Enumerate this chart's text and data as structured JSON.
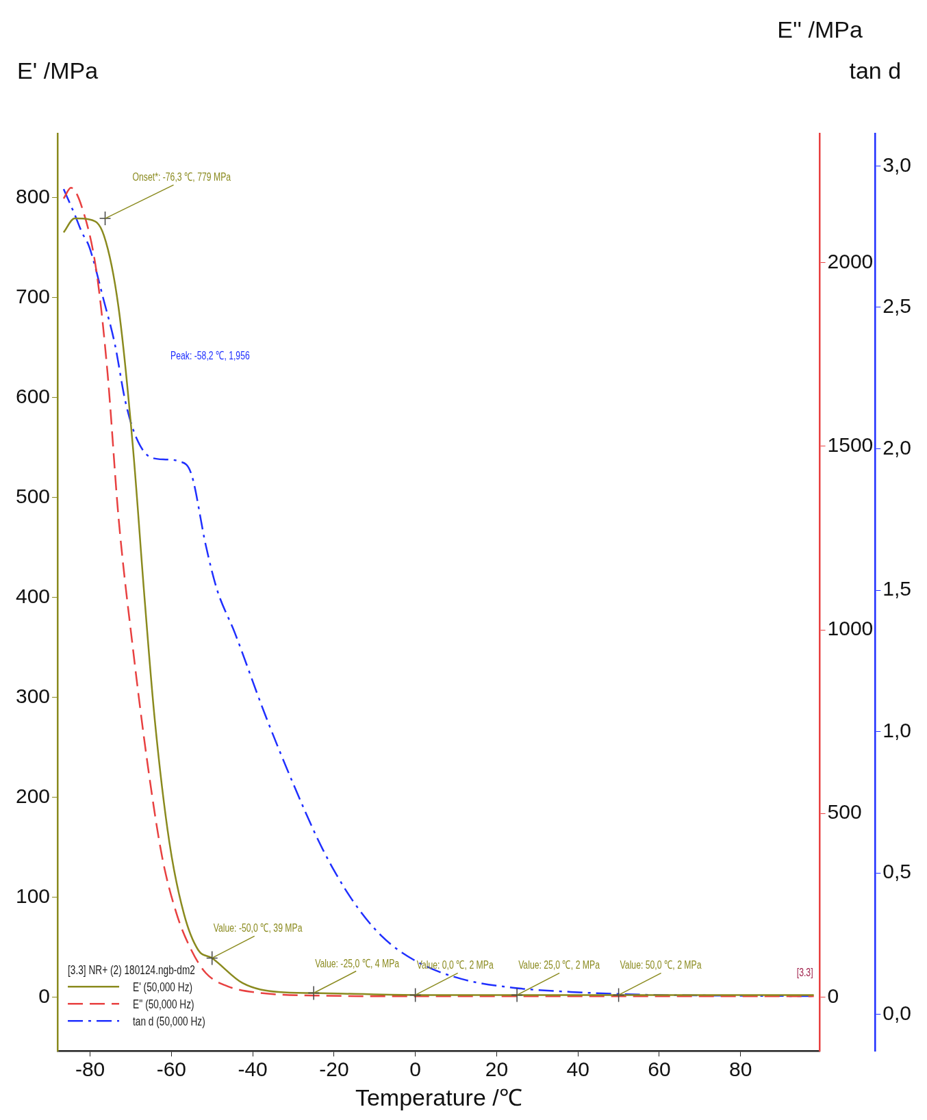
{
  "chart_data": {
    "type": "line",
    "xlabel": "Temperature /℃",
    "ylabel": "E' /MPa",
    "y2label": "E'' /MPa",
    "y3label": "tan d",
    "legend_title": "[3.3] NR+ (2) 180124.ngb-dm2",
    "legend": "bottom left",
    "xlim": [
      -88,
      99.5
    ],
    "xticks": [
      -80,
      -60,
      -40,
      -20,
      0,
      20,
      40,
      60,
      80
    ],
    "ylim": [
      -54,
      864
    ],
    "yticks": [
      0,
      100,
      200,
      300,
      400,
      500,
      600,
      700,
      800
    ],
    "y2lim": [
      -147,
      2352
    ],
    "y2ticks": [
      0,
      500,
      1000,
      1500,
      2000
    ],
    "y3lim": [
      -0.13,
      3.115
    ],
    "y3ticks": [
      {
        "value": 0,
        "label": "0,0"
      },
      {
        "value": 0.5,
        "label": "0,5"
      },
      {
        "value": 1,
        "label": "1,0"
      },
      {
        "value": 1.5,
        "label": "1,5"
      },
      {
        "value": 2,
        "label": "2,0"
      },
      {
        "value": 2.5,
        "label": "2,5"
      },
      {
        "value": 3,
        "label": "3,0"
      }
    ],
    "grid": false,
    "marker": "none",
    "series": [
      {
        "name": "E' (50,000 Hz)",
        "color": "#8a8a1e",
        "line_style": "solid",
        "x": [
          -86.5,
          -83.8,
          -80.2,
          -76.6,
          -73,
          -69.5,
          -66.6,
          -64.1,
          -60.5,
          -56.9,
          -53.4,
          -50,
          -42.5,
          -33.6,
          -25,
          0,
          25,
          50,
          98
        ],
        "values": [
          765,
          779,
          778,
          762,
          690,
          552,
          399,
          278,
          155,
          83,
          47,
          39,
          14,
          5,
          4,
          2,
          2,
          2,
          2
        ]
      },
      {
        "name": "E'' (50,000 Hz)",
        "color": "#e84040",
        "line_style": "dashed",
        "axis": "y2",
        "x": [
          -86.5,
          -84.7,
          -82,
          -78.4,
          -75.7,
          -73,
          -69.5,
          -65.9,
          -62.3,
          -58.7,
          -55.1,
          -51.5,
          -46.1,
          -37.1,
          -24.6,
          0,
          50,
          98
        ],
        "values": [
          2175,
          2204,
          2151,
          1974,
          1699,
          1306,
          953,
          638,
          383,
          226,
          128,
          65,
          29,
          10,
          4,
          2,
          2,
          2
        ]
      },
      {
        "name": "tan d (50,000 Hz)",
        "color": "#1f2fff",
        "line_style": "dashdot",
        "axis": "y3",
        "x": [
          -86.5,
          -83.8,
          -82,
          -80.2,
          -76.6,
          -73.9,
          -71.3,
          -68.6,
          -65,
          -61.4,
          -58.2,
          -55.1,
          -51.5,
          -48.8,
          -44.4,
          -37.2,
          -30,
          -22.8,
          -15.6,
          -8.4,
          0,
          11.3,
          23.9,
          38.2,
          56.2,
          74.2,
          97.5
        ],
        "values": [
          2.918,
          2.829,
          2.765,
          2.714,
          2.523,
          2.37,
          2.166,
          2.038,
          1.969,
          1.962,
          1.956,
          1.911,
          1.656,
          1.503,
          1.349,
          1.069,
          0.814,
          0.584,
          0.406,
          0.278,
          0.189,
          0.125,
          0.094,
          0.079,
          0.069,
          0.066,
          0.064
        ]
      }
    ],
    "annotations": [
      {
        "text": "Onset*: -76,3 ℃, 779 MPa",
        "x": -76.3,
        "y": 779
      },
      {
        "text": "Value: -50,0 ℃, 39 MPa",
        "x": -50,
        "y": 39
      },
      {
        "text": "Value: -25,0 ℃, 4 MPa",
        "x": -25,
        "y": 4
      },
      {
        "text": "Value: 0,0 ℃, 2 MPa",
        "x": 0,
        "y": 2
      },
      {
        "text": "Value: 25,0 ℃, 2 MPa",
        "x": 25,
        "y": 2
      },
      {
        "text": "Value: 50,0 ℃, 2 MPa",
        "x": 50,
        "y": 2
      },
      "Peak: -58,2 ℃, 1,956",
      "[3.3]"
    ]
  }
}
